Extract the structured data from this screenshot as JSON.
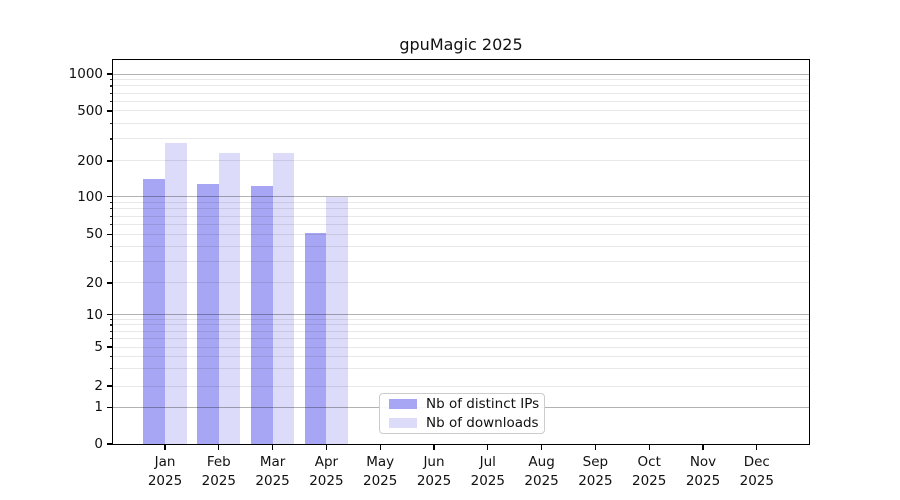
{
  "title": "gpuMagic 2025",
  "chart_data": {
    "type": "bar",
    "title": "gpuMagic 2025",
    "categories": [
      "Jan 2025",
      "Feb 2025",
      "Mar 2025",
      "Apr 2025",
      "May 2025",
      "Jun 2025",
      "Jul 2025",
      "Aug 2025",
      "Sep 2025",
      "Oct 2025",
      "Nov 2025",
      "Dec 2025"
    ],
    "months": [
      "Jan",
      "Feb",
      "Mar",
      "Apr",
      "May",
      "Jun",
      "Jul",
      "Aug",
      "Sep",
      "Oct",
      "Nov",
      "Dec"
    ],
    "year": "2025",
    "series": [
      {
        "name": "Nb of distinct IPs",
        "color": "#a6a6f4",
        "values": [
          142,
          129,
          122,
          51,
          0,
          0,
          0,
          0,
          0,
          0,
          0,
          0
        ]
      },
      {
        "name": "Nb of downloads",
        "color": "#dcdcfa",
        "values": [
          280,
          230,
          233,
          100,
          0,
          0,
          0,
          0,
          0,
          0,
          0,
          0
        ]
      }
    ],
    "xlabel": "",
    "ylabel": "",
    "yscale": "symlog",
    "ylim": [
      0,
      1150
    ],
    "y_ticks": [
      0,
      1,
      2,
      5,
      10,
      20,
      50,
      100,
      200,
      500,
      1000
    ],
    "y_minor_gridline_values": [
      2,
      3,
      4,
      5,
      6,
      7,
      8,
      9,
      20,
      30,
      40,
      50,
      60,
      70,
      80,
      90,
      200,
      300,
      400,
      500,
      600,
      700,
      800,
      900
    ],
    "y_major_gridline_values": [
      1,
      10,
      100,
      1000
    ],
    "y_tick_anchors_frac": [
      [
        0,
        1.0
      ],
      [
        1,
        0.9049
      ],
      [
        2,
        0.849
      ],
      [
        5,
        0.7474
      ],
      [
        10,
        0.6628
      ],
      [
        20,
        0.5807
      ],
      [
        50,
        0.4539
      ],
      [
        100,
        0.356
      ],
      [
        200,
        0.263
      ],
      [
        500,
        0.1328
      ],
      [
        1000,
        0.0365
      ]
    ],
    "grid": true,
    "legend_position": "lower center"
  },
  "colors": {
    "grid_major": "#b3b3b3",
    "grid_minor": "#e9e9e9",
    "spine": "#000000",
    "legend_border": "#cccccc",
    "text": "#111111",
    "background": "#ffffff"
  }
}
